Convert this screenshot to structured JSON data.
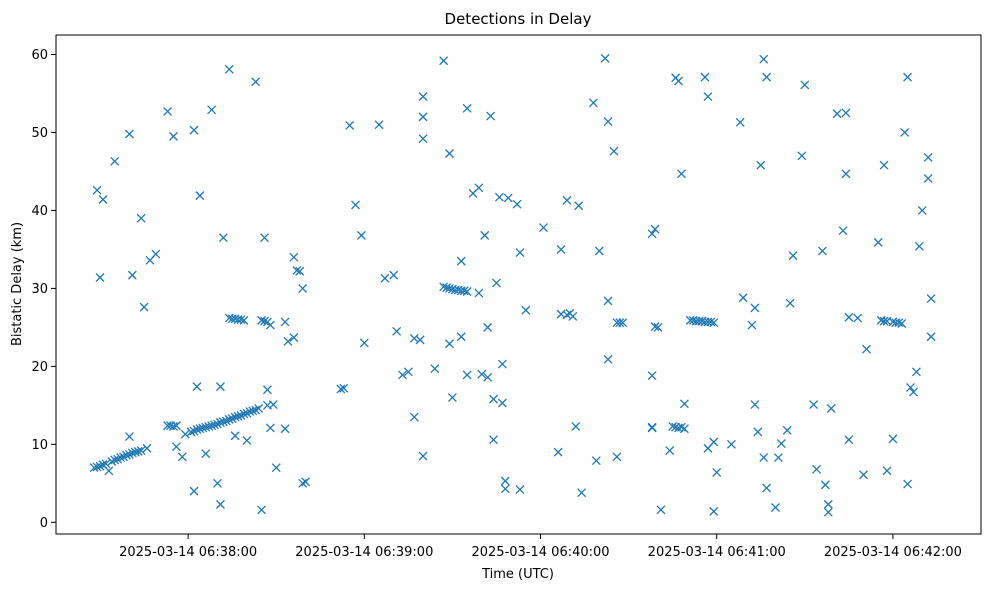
{
  "chart_data": {
    "type": "scatter",
    "title": "Detections in Delay",
    "xlabel": "Time (UTC)",
    "ylabel": "Bistatic Delay (km)",
    "marker": "x",
    "color": "#1f77b4",
    "grid": false,
    "legend": "none",
    "x_unit": "time (HH:MM:SS on 2025-03-14)",
    "xlim": [
      "06:37:15",
      "06:42:30"
    ],
    "ylim": [
      -1.5,
      62.5
    ],
    "x_ticks": [
      "06:38:00",
      "06:39:00",
      "06:40:00",
      "06:41:00",
      "06:42:00"
    ],
    "x_tick_labels": [
      "2025-03-14 06:38:00",
      "2025-03-14 06:39:00",
      "2025-03-14 06:40:00",
      "2025-03-14 06:41:00",
      "2025-03-14 06:42:00"
    ],
    "y_ticks": [
      0,
      10,
      20,
      30,
      40,
      50,
      60
    ],
    "y_tick_labels": [
      "0",
      "10",
      "20",
      "30",
      "40",
      "50",
      "60"
    ],
    "points": [
      [
        "06:37:29",
        42.6
      ],
      [
        "06:37:30",
        31.4
      ],
      [
        "06:37:31",
        41.4
      ],
      [
        "06:37:35",
        46.3
      ],
      [
        "06:37:40",
        11.0
      ],
      [
        "06:37:40",
        49.8
      ],
      [
        "06:37:41",
        31.7
      ],
      [
        "06:37:44",
        39.0
      ],
      [
        "06:37:45",
        27.6
      ],
      [
        "06:37:47",
        33.6
      ],
      [
        "06:37:49",
        34.4
      ],
      [
        "06:37:53",
        52.7
      ],
      [
        "06:37:55",
        49.5
      ],
      [
        "06:37:56",
        9.7
      ],
      [
        "06:37:58",
        8.4
      ],
      [
        "06:38:02",
        50.3
      ],
      [
        "06:38:02",
        4.0
      ],
      [
        "06:38:03",
        17.4
      ],
      [
        "06:38:04",
        41.9
      ],
      [
        "06:38:06",
        8.8
      ],
      [
        "06:38:08",
        52.9
      ],
      [
        "06:38:10",
        5.0
      ],
      [
        "06:38:11",
        17.4
      ],
      [
        "06:38:11",
        2.3
      ],
      [
        "06:38:12",
        36.5
      ],
      [
        "06:38:14",
        58.1
      ],
      [
        "06:38:16",
        11.1
      ],
      [
        "06:38:20",
        10.5
      ],
      [
        "06:38:23",
        56.5
      ],
      [
        "06:38:25",
        1.6
      ],
      [
        "06:38:26",
        36.5
      ],
      [
        "06:38:27",
        17.0
      ],
      [
        "06:38:28",
        12.1
      ],
      [
        "06:38:30",
        7.0
      ],
      [
        "06:38:33",
        25.7
      ],
      [
        "06:38:33",
        12.0
      ],
      [
        "06:38:34",
        23.2
      ],
      [
        "06:38:36",
        23.7
      ],
      [
        "06:38:36",
        34.0
      ],
      [
        "06:38:37",
        32.3
      ],
      [
        "06:38:38",
        32.2
      ],
      [
        "06:38:39",
        30.0
      ],
      [
        "06:38:39",
        5.0
      ],
      [
        "06:38:40",
        5.2
      ],
      [
        "06:38:52",
        17.1
      ],
      [
        "06:38:53",
        17.2
      ],
      [
        "06:38:55",
        50.9
      ],
      [
        "06:38:57",
        40.7
      ],
      [
        "06:38:59",
        36.8
      ],
      [
        "06:39:00",
        23.0
      ],
      [
        "06:39:05",
        51.0
      ],
      [
        "06:39:07",
        31.3
      ],
      [
        "06:39:10",
        31.7
      ],
      [
        "06:39:11",
        24.5
      ],
      [
        "06:39:13",
        18.9
      ],
      [
        "06:39:15",
        19.3
      ],
      [
        "06:39:17",
        23.6
      ],
      [
        "06:39:17",
        13.5
      ],
      [
        "06:39:19",
        23.4
      ],
      [
        "06:39:20",
        8.5
      ],
      [
        "06:39:20",
        54.6
      ],
      [
        "06:39:20",
        52.0
      ],
      [
        "06:39:20",
        49.2
      ],
      [
        "06:39:24",
        19.7
      ],
      [
        "06:39:27",
        59.2
      ],
      [
        "06:39:29",
        47.3
      ],
      [
        "06:39:29",
        22.9
      ],
      [
        "06:39:30",
        16.0
      ],
      [
        "06:39:33",
        23.8
      ],
      [
        "06:39:33",
        33.5
      ],
      [
        "06:39:35",
        18.9
      ],
      [
        "06:39:35",
        53.1
      ],
      [
        "06:39:37",
        42.2
      ],
      [
        "06:39:39",
        42.9
      ],
      [
        "06:39:39",
        29.4
      ],
      [
        "06:39:40",
        19.0
      ],
      [
        "06:39:41",
        36.8
      ],
      [
        "06:39:42",
        18.6
      ],
      [
        "06:39:42",
        25.0
      ],
      [
        "06:39:43",
        52.1
      ],
      [
        "06:39:44",
        15.8
      ],
      [
        "06:39:44",
        10.6
      ],
      [
        "06:39:45",
        30.7
      ],
      [
        "06:39:46",
        41.7
      ],
      [
        "06:39:47",
        15.3
      ],
      [
        "06:39:47",
        20.3
      ],
      [
        "06:39:48",
        5.3
      ],
      [
        "06:39:48",
        4.3
      ],
      [
        "06:39:49",
        41.6
      ],
      [
        "06:39:52",
        40.8
      ],
      [
        "06:39:53",
        34.6
      ],
      [
        "06:39:53",
        4.2
      ],
      [
        "06:39:55",
        27.2
      ],
      [
        "06:40:01",
        37.8
      ],
      [
        "06:40:06",
        9.0
      ],
      [
        "06:40:07",
        35.0
      ],
      [
        "06:40:07",
        26.7
      ],
      [
        "06:40:09",
        26.6
      ],
      [
        "06:40:09",
        41.3
      ],
      [
        "06:40:10",
        26.8
      ],
      [
        "06:40:11",
        26.4
      ],
      [
        "06:40:12",
        12.3
      ],
      [
        "06:40:13",
        40.6
      ],
      [
        "06:40:14",
        3.8
      ],
      [
        "06:40:18",
        53.8
      ],
      [
        "06:40:19",
        7.9
      ],
      [
        "06:40:20",
        34.8
      ],
      [
        "06:40:22",
        59.5
      ],
      [
        "06:40:23",
        51.4
      ],
      [
        "06:40:23",
        28.4
      ],
      [
        "06:40:23",
        20.9
      ],
      [
        "06:40:25",
        47.6
      ],
      [
        "06:40:26",
        8.4
      ],
      [
        "06:40:26",
        25.6
      ],
      [
        "06:40:27",
        25.6
      ],
      [
        "06:40:28",
        25.6
      ],
      [
        "06:40:38",
        37.0
      ],
      [
        "06:40:38",
        18.8
      ],
      [
        "06:40:38",
        12.2
      ],
      [
        "06:40:38",
        12.1
      ],
      [
        "06:40:39",
        25.1
      ],
      [
        "06:40:39",
        37.6
      ],
      [
        "06:40:40",
        25.0
      ],
      [
        "06:40:41",
        1.6
      ],
      [
        "06:40:44",
        9.2
      ],
      [
        "06:40:45",
        12.3
      ],
      [
        "06:40:46",
        12.2
      ],
      [
        "06:40:46",
        57.0
      ],
      [
        "06:40:47",
        56.6
      ],
      [
        "06:40:47",
        12.1
      ],
      [
        "06:40:48",
        44.7
      ],
      [
        "06:40:48",
        12.2
      ],
      [
        "06:40:49",
        12.0
      ],
      [
        "06:40:49",
        15.2
      ],
      [
        "06:40:56",
        57.1
      ],
      [
        "06:40:57",
        54.6
      ],
      [
        "06:40:57",
        9.5
      ],
      [
        "06:40:59",
        10.3
      ],
      [
        "06:40:59",
        1.4
      ],
      [
        "06:41:00",
        6.4
      ],
      [
        "06:41:05",
        10.0
      ],
      [
        "06:41:08",
        51.3
      ],
      [
        "06:41:09",
        28.8
      ],
      [
        "06:41:12",
        25.3
      ],
      [
        "06:41:13",
        27.5
      ],
      [
        "06:41:13",
        15.1
      ],
      [
        "06:41:14",
        11.6
      ],
      [
        "06:41:15",
        45.8
      ],
      [
        "06:41:16",
        8.3
      ],
      [
        "06:41:16",
        59.4
      ],
      [
        "06:41:17",
        57.1
      ],
      [
        "06:41:17",
        4.4
      ],
      [
        "06:41:20",
        1.9
      ],
      [
        "06:41:21",
        8.3
      ],
      [
        "06:41:22",
        10.1
      ],
      [
        "06:41:24",
        11.8
      ],
      [
        "06:41:25",
        28.1
      ],
      [
        "06:41:26",
        34.2
      ],
      [
        "06:41:29",
        47.0
      ],
      [
        "06:41:30",
        56.1
      ],
      [
        "06:41:33",
        15.1
      ],
      [
        "06:41:34",
        6.8
      ],
      [
        "06:41:36",
        34.8
      ],
      [
        "06:41:37",
        4.8
      ],
      [
        "06:41:38",
        2.3
      ],
      [
        "06:41:38",
        1.3
      ],
      [
        "06:41:39",
        14.6
      ],
      [
        "06:41:41",
        52.4
      ],
      [
        "06:41:43",
        37.4
      ],
      [
        "06:41:44",
        52.5
      ],
      [
        "06:41:44",
        44.7
      ],
      [
        "06:41:45",
        26.3
      ],
      [
        "06:41:45",
        10.6
      ],
      [
        "06:41:48",
        26.2
      ],
      [
        "06:41:50",
        6.1
      ],
      [
        "06:41:51",
        22.2
      ],
      [
        "06:41:55",
        35.9
      ],
      [
        "06:41:57",
        45.8
      ],
      [
        "06:41:58",
        6.6
      ],
      [
        "06:42:00",
        10.7
      ],
      [
        "06:42:04",
        50.0
      ],
      [
        "06:42:05",
        57.1
      ],
      [
        "06:42:05",
        4.9
      ],
      [
        "06:42:06",
        17.3
      ],
      [
        "06:42:07",
        16.7
      ],
      [
        "06:42:08",
        19.3
      ],
      [
        "06:42:09",
        35.4
      ],
      [
        "06:42:10",
        40.0
      ],
      [
        "06:42:12",
        44.1
      ],
      [
        "06:42:12",
        46.8
      ],
      [
        "06:42:13",
        23.8
      ],
      [
        "06:42:13",
        28.7
      ],
      [
        "06:37:28",
        7.0
      ],
      [
        "06:37:29",
        7.1
      ],
      [
        "06:37:30",
        7.2
      ],
      [
        "06:37:31",
        7.4
      ],
      [
        "06:37:32",
        7.5
      ],
      [
        "06:37:33",
        6.6
      ],
      [
        "06:37:34",
        7.8
      ],
      [
        "06:37:35",
        8.0
      ],
      [
        "06:37:36",
        8.1
      ],
      [
        "06:37:37",
        8.3
      ],
      [
        "06:37:38",
        8.4
      ],
      [
        "06:37:39",
        8.6
      ],
      [
        "06:37:40",
        8.7
      ],
      [
        "06:37:41",
        8.9
      ],
      [
        "06:37:42",
        9.0
      ],
      [
        "06:37:43",
        9.1
      ],
      [
        "06:37:44",
        9.2
      ],
      [
        "06:37:46",
        9.5
      ],
      [
        "06:37:53",
        12.4
      ],
      [
        "06:37:54",
        12.4
      ],
      [
        "06:37:55",
        12.3
      ],
      [
        "06:37:56",
        12.4
      ],
      [
        "06:37:59",
        11.3
      ],
      [
        "06:38:01",
        11.6
      ],
      [
        "06:38:02",
        11.7
      ],
      [
        "06:38:03",
        11.9
      ],
      [
        "06:38:04",
        12.0
      ],
      [
        "06:38:05",
        12.1
      ],
      [
        "06:38:06",
        12.2
      ],
      [
        "06:38:07",
        12.3
      ],
      [
        "06:38:08",
        12.4
      ],
      [
        "06:38:09",
        12.5
      ],
      [
        "06:38:10",
        12.6
      ],
      [
        "06:38:11",
        12.8
      ],
      [
        "06:38:12",
        12.9
      ],
      [
        "06:38:13",
        13.0
      ],
      [
        "06:38:14",
        13.2
      ],
      [
        "06:38:15",
        13.3
      ],
      [
        "06:38:16",
        13.5
      ],
      [
        "06:38:17",
        13.6
      ],
      [
        "06:38:18",
        13.7
      ],
      [
        "06:38:19",
        13.9
      ],
      [
        "06:38:20",
        14.0
      ],
      [
        "06:38:21",
        14.2
      ],
      [
        "06:38:22",
        14.3
      ],
      [
        "06:38:23",
        14.4
      ],
      [
        "06:38:24",
        14.6
      ],
      [
        "06:38:27",
        15.0
      ],
      [
        "06:38:29",
        15.1
      ],
      [
        "06:38:14",
        26.2
      ],
      [
        "06:38:15",
        26.1
      ],
      [
        "06:38:16",
        26.1
      ],
      [
        "06:38:17",
        26.0
      ],
      [
        "06:38:18",
        26.0
      ],
      [
        "06:38:19",
        25.9
      ],
      [
        "06:38:25",
        25.9
      ],
      [
        "06:38:26",
        25.8
      ],
      [
        "06:38:27",
        25.7
      ],
      [
        "06:38:28",
        25.3
      ],
      [
        "06:39:27",
        30.2
      ],
      [
        "06:39:28",
        30.1
      ],
      [
        "06:39:29",
        30.0
      ],
      [
        "06:39:30",
        29.9
      ],
      [
        "06:39:31",
        29.8
      ],
      [
        "06:39:32",
        29.8
      ],
      [
        "06:39:33",
        29.7
      ],
      [
        "06:39:34",
        29.7
      ],
      [
        "06:39:35",
        29.6
      ],
      [
        "06:40:51",
        25.9
      ],
      [
        "06:40:52",
        25.9
      ],
      [
        "06:40:53",
        25.8
      ],
      [
        "06:40:54",
        25.8
      ],
      [
        "06:40:55",
        25.8
      ],
      [
        "06:40:56",
        25.7
      ],
      [
        "06:40:57",
        25.7
      ],
      [
        "06:40:58",
        25.7
      ],
      [
        "06:40:59",
        25.6
      ],
      [
        "06:41:56",
        25.9
      ],
      [
        "06:41:57",
        25.8
      ],
      [
        "06:41:58",
        25.8
      ],
      [
        "06:42:00",
        25.7
      ],
      [
        "06:42:01",
        25.6
      ],
      [
        "06:42:02",
        25.6
      ],
      [
        "06:42:03",
        25.5
      ]
    ]
  }
}
